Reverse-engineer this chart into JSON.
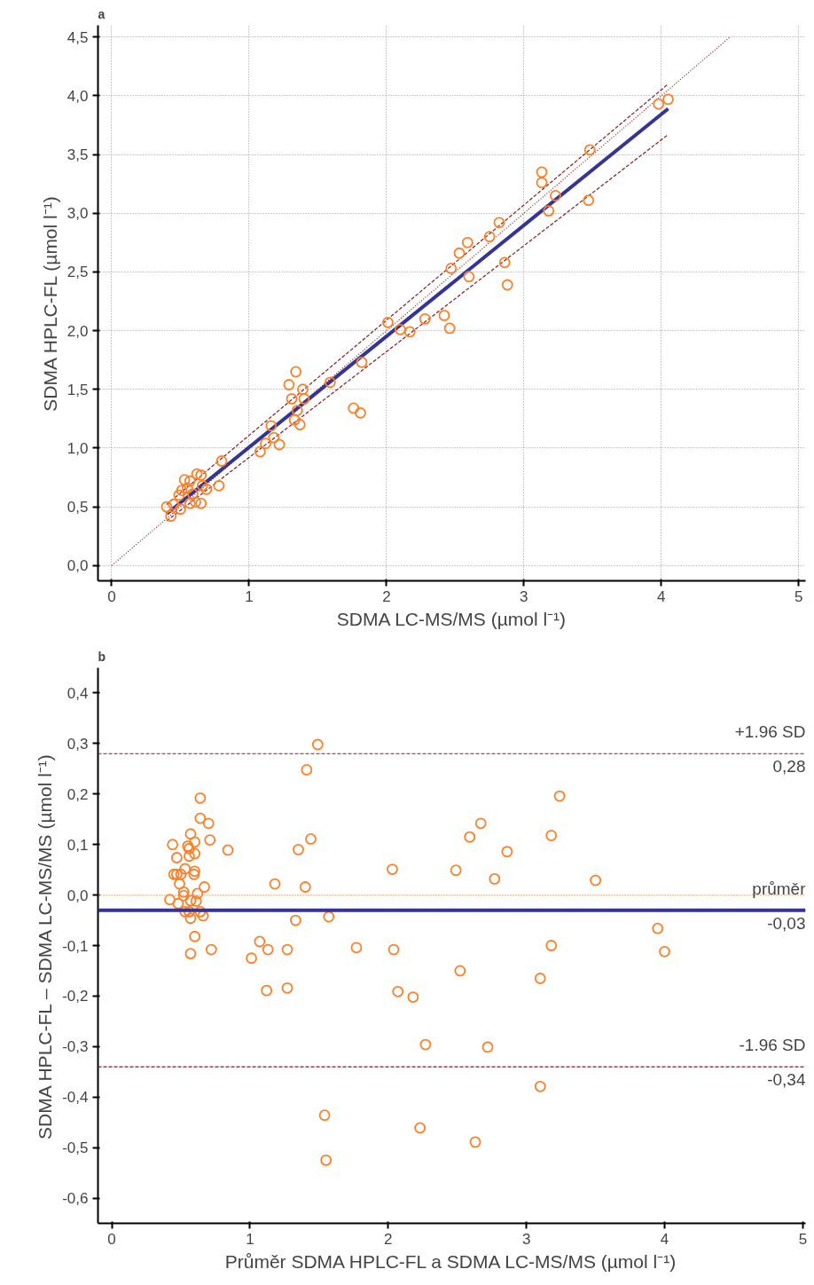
{
  "chart_data": [
    {
      "type": "scatter",
      "title": "a",
      "xlabel": "SDMA LC-MS/MS (µmol l⁻¹)",
      "ylabel": "SDMA HPLC-FL (µmol l⁻¹)",
      "xlim": [
        -0.1,
        5.05
      ],
      "ylim": [
        -0.13,
        4.6
      ],
      "xticks": [
        0,
        1,
        2,
        3,
        4,
        5
      ],
      "yticks": [
        {
          "value": 0,
          "label": "0,0"
        },
        {
          "value": 0.5,
          "label": "0,5"
        },
        {
          "value": 1,
          "label": "1,0"
        },
        {
          "value": 1.5,
          "label": "1,5"
        },
        {
          "value": 2,
          "label": "2,0"
        },
        {
          "value": 2.5,
          "label": "2,5"
        },
        {
          "value": 3,
          "label": "3,0"
        },
        {
          "value": 3.5,
          "label": "3,5"
        },
        {
          "value": 4,
          "label": "4,0"
        },
        {
          "value": 4.5,
          "label": "4,5"
        }
      ],
      "grid": true,
      "series": [
        {
          "type": "line",
          "color": "#8b1a1a",
          "line_style": "dotted",
          "x": [
            0,
            4.5
          ],
          "values": [
            0,
            4.5
          ]
        },
        {
          "type": "line",
          "color": "#8b1a1a",
          "line_style": "dashed",
          "x": [
            0.4,
            4.05
          ],
          "values": [
            0.52,
            4.1
          ]
        },
        {
          "type": "line",
          "color": "#8b1a1a",
          "line_style": "dashed",
          "x": [
            0.4,
            4.05
          ],
          "values": [
            0.38,
            3.67
          ]
        },
        {
          "type": "line",
          "color": "#333399",
          "line_style": "solid",
          "x": [
            0.4,
            4.05
          ],
          "values": [
            0.44,
            3.89
          ]
        },
        {
          "marker": "circle",
          "color": "#ff7f27",
          "x": [
            0.4,
            0.43,
            0.45,
            0.5,
            0.49,
            0.51,
            0.53,
            0.57,
            0.55,
            0.59,
            0.61,
            0.62,
            0.65,
            0.65,
            0.66,
            0.69,
            0.57,
            0.78,
            0.8,
            1.08,
            1.12,
            1.16,
            1.18,
            1.22,
            1.29,
            1.31,
            1.34,
            1.39,
            1.4,
            1.35,
            1.33,
            1.37,
            1.59,
            1.76,
            1.81,
            1.82,
            2.01,
            2.1,
            2.17,
            2.28,
            2.42,
            2.46,
            2.47,
            2.53,
            2.59,
            2.6,
            2.75,
            2.82,
            2.86,
            2.88,
            3.13,
            3.13,
            3.23,
            3.18,
            3.48,
            3.47,
            3.98,
            4.05
          ],
          "values": [
            0.5,
            0.42,
            0.52,
            0.48,
            0.6,
            0.64,
            0.73,
            0.72,
            0.66,
            0.61,
            0.54,
            0.78,
            0.77,
            0.53,
            0.68,
            0.65,
            0.53,
            0.68,
            0.89,
            0.97,
            1.04,
            1.19,
            1.09,
            1.03,
            1.54,
            1.42,
            1.65,
            1.5,
            1.42,
            1.32,
            1.24,
            1.2,
            1.56,
            1.34,
            1.3,
            1.73,
            2.07,
            2.01,
            1.99,
            2.1,
            2.13,
            2.02,
            2.53,
            2.66,
            2.75,
            2.46,
            2.8,
            2.92,
            2.58,
            2.39,
            3.35,
            3.26,
            3.15,
            3.02,
            3.54,
            3.11,
            3.93,
            3.97
          ]
        }
      ]
    },
    {
      "type": "scatter",
      "title": "b",
      "xlabel": "Průměr SDMA HPLC-FL a SDMA LC-MS/MS (µmol l⁻¹)",
      "ylabel": "SDMA HPLC-FL – SDMA LC-MS/MS (µmol l⁻¹)",
      "xlim": [
        -0.1,
        5.02
      ],
      "ylim": [
        -0.65,
        0.45
      ],
      "xticks": [
        0,
        1,
        2,
        3,
        4,
        5
      ],
      "yticks": [
        {
          "value": -0.6,
          "label": "-0,6"
        },
        {
          "value": -0.5,
          "label": "-0,5"
        },
        {
          "value": -0.4,
          "label": "-0,4"
        },
        {
          "value": -0.3,
          "label": "-0,3"
        },
        {
          "value": -0.2,
          "label": "-0,2"
        },
        {
          "value": -0.1,
          "label": "-0,1"
        },
        {
          "value": 0,
          "label": "0,0"
        },
        {
          "value": 0.1,
          "label": "0,1"
        },
        {
          "value": 0.2,
          "label": "0,2"
        },
        {
          "value": 0.3,
          "label": "0,3"
        },
        {
          "value": 0.4,
          "label": "0,4"
        }
      ],
      "grid": false,
      "ref_lines": [
        {
          "axis": "y",
          "value": 0,
          "color": "#ff7f27",
          "line_style": "dotted"
        },
        {
          "axis": "y",
          "value": 0.28,
          "label": "+1.96 SD",
          "color": "#8b1a1a",
          "line_style": "dashed"
        },
        {
          "axis": "y",
          "value": -0.03,
          "label": "průměr",
          "color": "#333399",
          "line_style": "solid"
        },
        {
          "axis": "y",
          "value": -0.34,
          "label": "-1.96 SD",
          "color": "#8b1a1a",
          "line_style": "dashed"
        }
      ],
      "annotations": [
        {
          "text": "0,28",
          "y": 0.28
        },
        {
          "text": "-0,03",
          "y": -0.03
        },
        {
          "text": "-0,34",
          "y": -0.34
        }
      ],
      "series": [
        {
          "marker": "circle",
          "color": "#ff7f27",
          "x": [
            0.44,
            0.47,
            0.45,
            0.47,
            0.5,
            0.49,
            0.42,
            0.48,
            0.52,
            0.52,
            0.53,
            0.57,
            0.55,
            0.56,
            0.56,
            0.6,
            0.6,
            0.6,
            0.595,
            0.57,
            0.61,
            0.62,
            0.53,
            0.56,
            0.57,
            0.64,
            0.66,
            0.67,
            0.64,
            0.64,
            0.7,
            0.71,
            0.6,
            0.57,
            0.72,
            0.84,
            1.01,
            1.07,
            1.13,
            1.27,
            1.12,
            1.27,
            1.18,
            1.33,
            1.35,
            1.4,
            1.44,
            1.41,
            1.49,
            1.57,
            1.77,
            2.04,
            2.03,
            2.07,
            2.18,
            2.52,
            2.49,
            2.59,
            2.67,
            2.77,
            2.86,
            3.24,
            3.18,
            3.18,
            3.1,
            3.5,
            3.95,
            4.0,
            1.54,
            1.55,
            2.27,
            2.23,
            2.72,
            2.63,
            3.1
          ],
          "values": [
            0.1,
            0.074,
            0.041,
            0.041,
            0.041,
            0.022,
            -0.009,
            -0.017,
            0.006,
            -0.001,
            0.052,
            0.121,
            0.097,
            0.092,
            0.077,
            0.105,
            0.082,
            0.047,
            0.041,
            -0.011,
            -0.012,
            0.003,
            -0.033,
            -0.033,
            -0.046,
            -0.033,
            -0.041,
            0.016,
            0.192,
            0.152,
            0.142,
            0.109,
            -0.082,
            -0.116,
            -0.108,
            0.089,
            -0.125,
            -0.092,
            -0.108,
            -0.108,
            -0.189,
            -0.184,
            0.022,
            -0.05,
            0.09,
            0.016,
            0.111,
            0.248,
            0.298,
            -0.043,
            -0.104,
            -0.108,
            0.051,
            -0.191,
            -0.202,
            -0.15,
            0.049,
            0.115,
            0.142,
            0.032,
            0.086,
            0.196,
            0.118,
            -0.1,
            -0.165,
            0.029,
            -0.066,
            -0.112,
            -0.436,
            -0.525,
            -0.296,
            -0.461,
            -0.301,
            -0.489,
            -0.379
          ]
        }
      ]
    }
  ]
}
